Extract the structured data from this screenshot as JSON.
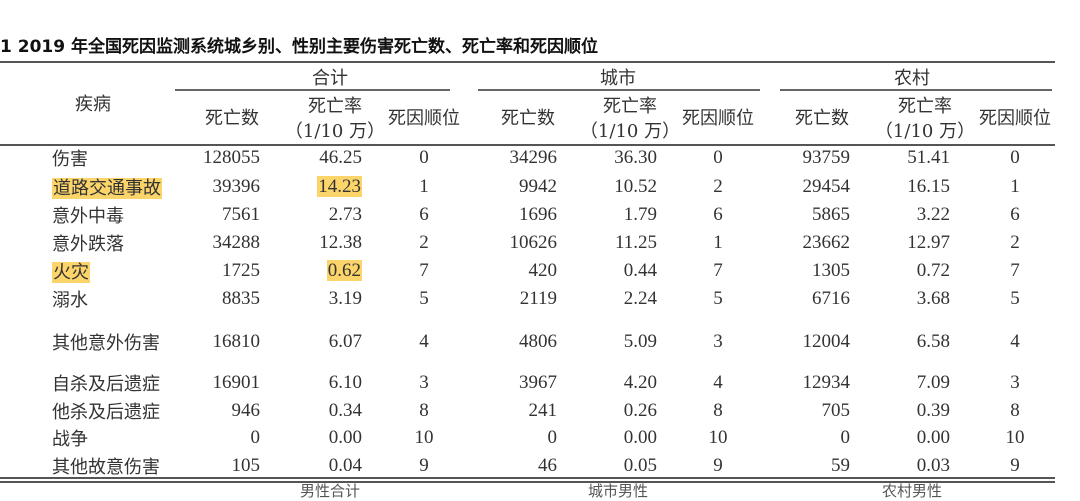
{
  "title": "1   2019 年全国死因监测系统城乡别、性别主要伤害死亡数、死亡率和死因顺位",
  "header": {
    "disease": "疾病",
    "groups": [
      "合计",
      "城市",
      "农村"
    ],
    "sub": {
      "deaths": "死亡数",
      "rate_line1": "死亡率",
      "rate_line2": "（1/10 万）",
      "rank": "死因顺位"
    }
  },
  "highlight_color": "#fbd46a",
  "rows": [
    {
      "name": "伤害",
      "hl_name": false,
      "hl_rate": false,
      "cells": [
        "128055",
        "46.25",
        "0",
        "34296",
        "36.30",
        "0",
        "93759",
        "51.41",
        "0"
      ]
    },
    {
      "name": "道路交通事故",
      "hl_name": true,
      "hl_rate": true,
      "cells": [
        "39396",
        "14.23",
        "1",
        "9942",
        "10.52",
        "2",
        "29454",
        "16.15",
        "1"
      ]
    },
    {
      "name": "意外中毒",
      "hl_name": false,
      "hl_rate": false,
      "cells": [
        "7561",
        "2.73",
        "6",
        "1696",
        "1.79",
        "6",
        "5865",
        "3.22",
        "6"
      ]
    },
    {
      "name": "意外跌落",
      "hl_name": false,
      "hl_rate": false,
      "cells": [
        "34288",
        "12.38",
        "2",
        "10626",
        "11.25",
        "1",
        "23662",
        "12.97",
        "2"
      ]
    },
    {
      "name": "火灾",
      "hl_name": true,
      "hl_rate": true,
      "cells": [
        "1725",
        "0.62",
        "7",
        "420",
        "0.44",
        "7",
        "1305",
        "0.72",
        "7"
      ]
    },
    {
      "name": "溺水",
      "hl_name": false,
      "hl_rate": false,
      "cells": [
        "8835",
        "3.19",
        "5",
        "2119",
        "2.24",
        "5",
        "6716",
        "3.68",
        "5"
      ]
    },
    {
      "name": "其他意外伤害",
      "hl_name": false,
      "hl_rate": false,
      "cells": [
        "16810",
        "6.07",
        "4",
        "4806",
        "5.09",
        "3",
        "12004",
        "6.58",
        "4"
      ]
    },
    {
      "name": "自杀及后遗症",
      "hl_name": false,
      "hl_rate": false,
      "cells": [
        "16901",
        "6.10",
        "3",
        "3967",
        "4.20",
        "4",
        "12934",
        "7.09",
        "3"
      ]
    },
    {
      "name": "他杀及后遗症",
      "hl_name": false,
      "hl_rate": false,
      "cells": [
        "946",
        "0.34",
        "8",
        "241",
        "0.26",
        "8",
        "705",
        "0.39",
        "8"
      ]
    },
    {
      "name": "战争",
      "hl_name": false,
      "hl_rate": false,
      "cells": [
        "0",
        "0.00",
        "10",
        "0",
        "0.00",
        "10",
        "0",
        "0.00",
        "10"
      ]
    },
    {
      "name": "其他故意伤害",
      "hl_name": false,
      "hl_rate": false,
      "cells": [
        "105",
        "0.04",
        "9",
        "46",
        "0.05",
        "9",
        "59",
        "0.03",
        "9"
      ]
    }
  ],
  "footer_partial": [
    "男性合计",
    "城市男性",
    "农村男性"
  ]
}
